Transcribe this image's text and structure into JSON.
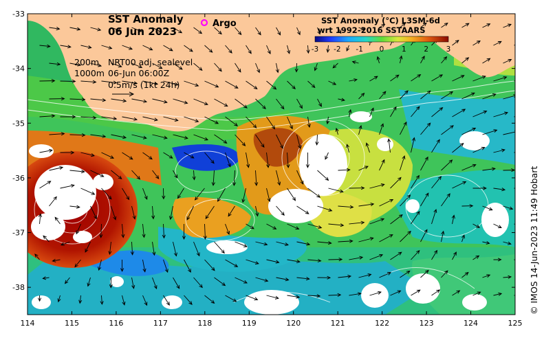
{
  "map": {
    "title_line1": "SST Anomaly",
    "title_line2": "06 Jun 2023",
    "legend_argo": "Argo",
    "contour_depth_1": "200m",
    "contour_depth_2": "1000m",
    "current_label_1": "NRT00 adj. sealevel",
    "current_label_2": "06-Jun 06:00Z",
    "current_label_3": "0.5m/s (1kt 24h)",
    "credit": "© IMOS 14-Jun-2023 11:49 Hobart",
    "lon_ticks": [
      "114",
      "115",
      "116",
      "117",
      "118",
      "119",
      "120",
      "121",
      "122",
      "123",
      "124",
      "125"
    ],
    "lat_ticks": [
      "-33",
      "-34",
      "-35",
      "-36",
      "-37",
      "-38"
    ],
    "lon_range": [
      114,
      125
    ],
    "lat_range": [
      -38.5,
      -33
    ],
    "colors": {
      "land": "#fbc89a",
      "argo_marker": "#ff00ff",
      "cloud": "#ffffff"
    }
  },
  "colorbar": {
    "title_line1": "SST Anomaly (°C) L3SM-6d",
    "title_line2": "wrt 1992-2016 SSTAARS",
    "ticks": [
      "-3",
      "-2",
      "-1",
      "0",
      "1",
      "2",
      "3"
    ],
    "range": [
      -3,
      3
    ]
  }
}
